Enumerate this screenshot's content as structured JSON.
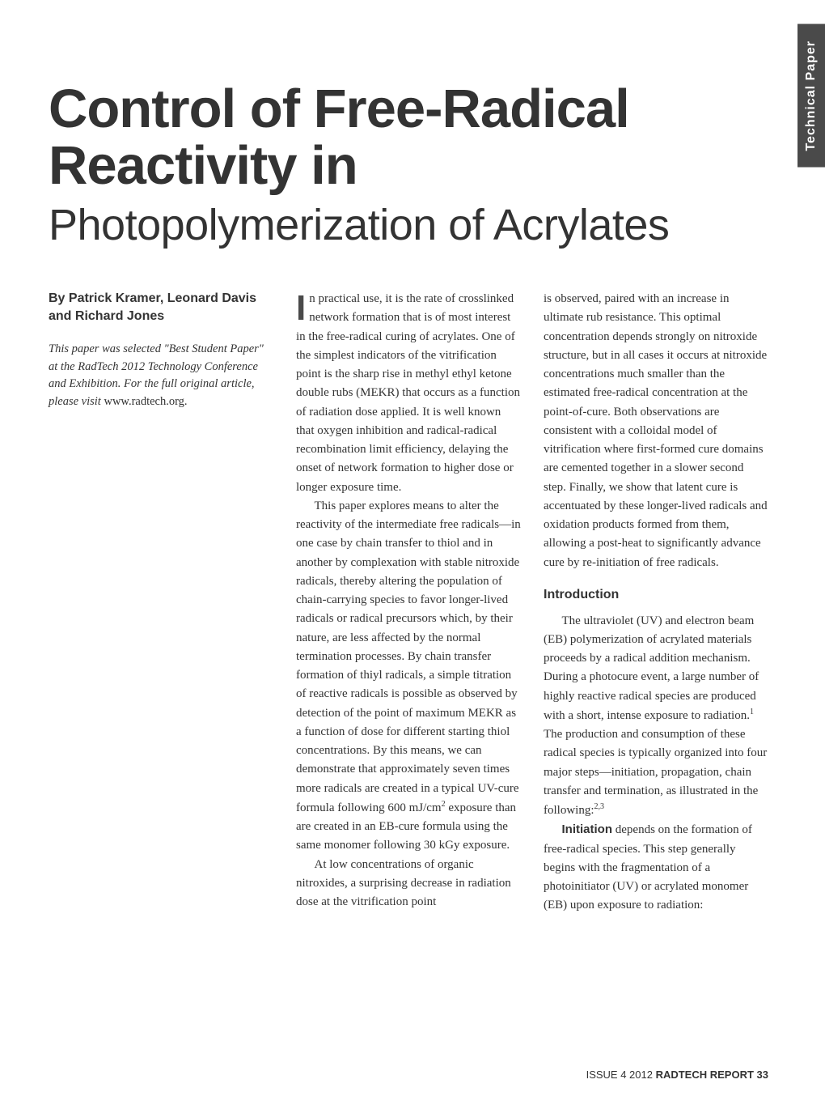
{
  "side_tab": "Technical Paper",
  "title": {
    "line1": "Control of Free-Radical",
    "line2": "Reactivity in",
    "line3": "Photopolymerization of Acrylates"
  },
  "byline": "By Patrick Kramer, Leonard Davis and Richard Jones",
  "note": {
    "italic": "This paper was selected \"Best Student Paper\" at the RadTech 2012 Technology Conference and Exhibition. For the full original article, please visit",
    "link": "www.radtech.org."
  },
  "col2": {
    "p1_first": "I",
    "p1": "n practical use, it is the rate of crosslinked network formation that is of most interest in the free-radical curing of acrylates. One of the simplest indicators of the vitrification point is the sharp rise in methyl ethyl ketone double rubs (MEKR) that occurs as a function of radiation dose applied. It is well known that oxygen inhibition and radical-radical recombination limit efficiency, delaying the onset of network formation to higher dose or longer exposure time.",
    "p2a": "This paper explores means to alter the reactivity of the intermediate free radicals—in one case by chain transfer to thiol and in another by complexation with stable nitroxide radicals, thereby altering the population of chain-carrying species to favor longer-lived radicals or radical precursors which, by their nature, are less affected by the normal termination processes. By chain transfer formation of thiyl radicals, a simple titration of reactive radicals is possible as observed by detection of the point of maximum MEKR as a function of dose for different starting thiol concentrations. By this means, we can demonstrate that approximately seven times more radicals are created in a typical UV-cure formula following 600 mJ/cm",
    "p2b": " exposure than are created in an EB-cure formula using the same monomer following 30 kGy exposure.",
    "p3": "At low concentrations of organic nitroxides, a surprising decrease in radiation dose at the vitrification point"
  },
  "col3": {
    "p1": "is observed, paired with an increase in ultimate rub resistance. This optimal concentration depends strongly on nitroxide structure, but in all cases it occurs at nitroxide concentrations much smaller than the estimated free-radical concentration at the point-of-cure. Both observations are consistent with a colloidal model of vitrification where first-formed cure domains are cemented together in a slower second step. Finally, we show that latent cure is accentuated by these longer-lived radicals and oxidation products formed from them, allowing a post-heat to significantly advance cure by re-initiation of free radicals.",
    "heading": "Introduction",
    "p2a": "The ultraviolet (UV) and electron beam (EB) polymerization of acrylated materials proceeds by a radical addition mechanism. During a photocure event, a large number of highly reactive radical species are produced with a short, intense exposure to radiation.",
    "p2b": " The production and consumption of these radical species is typically organized into four major steps—initiation, propagation, chain transfer and termination, as illustrated in the following:",
    "p3_bold": "Initiation",
    "p3": " depends on the formation of free-radical species. This step generally begins with the fragmentation of a photoinitiator (UV) or acrylated monomer (EB) upon exposure to radiation:"
  },
  "refs": {
    "r1": "1",
    "r2": "2,3",
    "sq": "2"
  },
  "footer": {
    "issue": "ISSUE 4  2012  ",
    "pub": "RADTECH REPORT  ",
    "page": "33"
  },
  "colors": {
    "background": "#ffffff",
    "text": "#333333",
    "tab_bg": "#4a4a4a",
    "tab_text": "#ffffff"
  },
  "typography": {
    "title_bold_size": 67,
    "title_light_size": 54,
    "body_size": 15,
    "byline_size": 16,
    "heading_size": 16,
    "footer_size": 13
  }
}
